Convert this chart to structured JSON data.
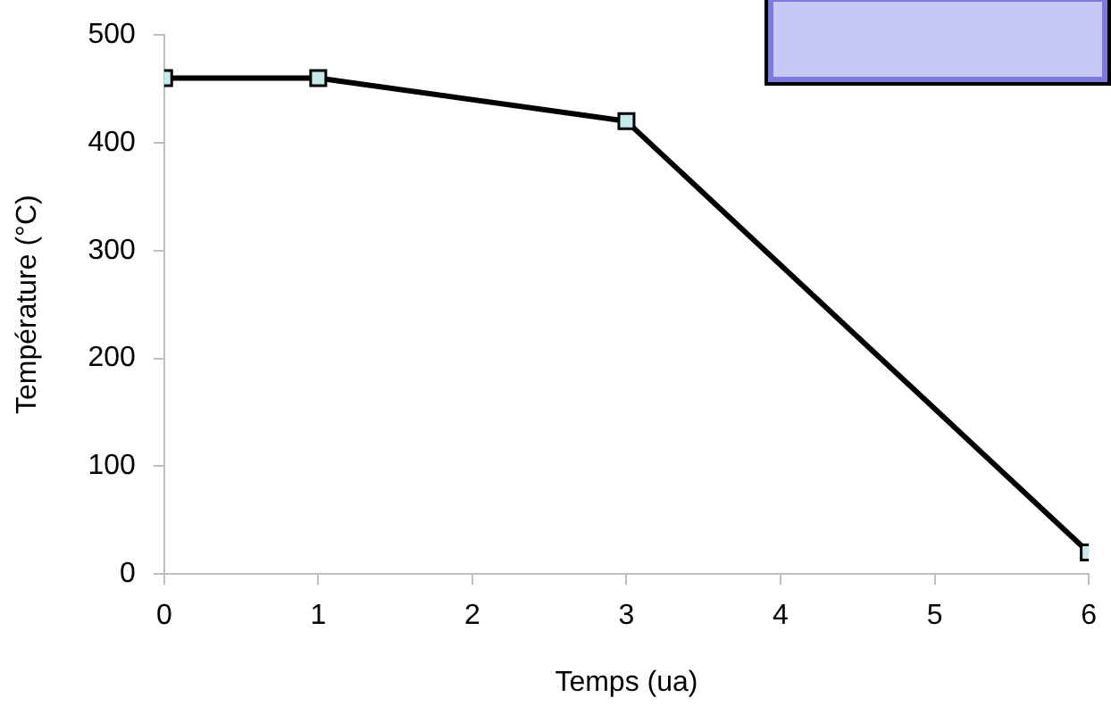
{
  "chart_data": {
    "type": "line",
    "xlabel": "Temps (ua)",
    "ylabel": "Température (°C)",
    "x": [
      0,
      1,
      3,
      6
    ],
    "series": [
      {
        "color": "#000000",
        "values": [
          460,
          460,
          420,
          20
        ]
      }
    ],
    "xlim": [
      0,
      6
    ],
    "xticks": [
      0,
      1,
      2,
      3,
      4,
      5,
      6
    ],
    "ylim": [
      0,
      500
    ],
    "yticks": [
      0,
      100,
      200,
      300,
      400,
      500
    ],
    "marker": "square",
    "line_style": "solid",
    "grid": false,
    "legend": false
  }
}
